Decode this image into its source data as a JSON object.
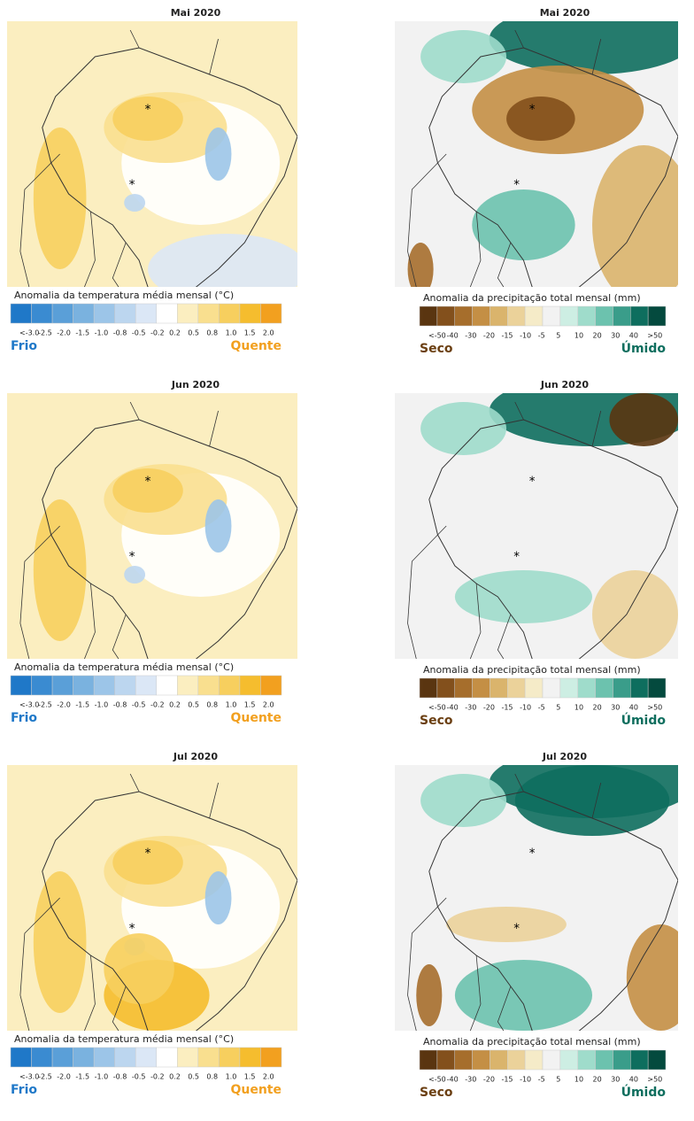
{
  "rows": [
    {
      "temperature_title": "Mai 2020",
      "precipitation_title": "Mai 2020"
    },
    {
      "temperature_title": "Jun 2020",
      "precipitation_title": "Jun 2020"
    },
    {
      "temperature_title": "Jul 2020",
      "precipitation_title": "Jul 2020"
    }
  ],
  "temperature_legend": {
    "title": "Anomalia da temperatura média mensal (°C)",
    "ticks": [
      "<-3.0",
      "-2.5",
      "-2.0",
      "-1.5",
      "-1.0",
      "-0.8",
      "-0.5",
      "-0.2",
      "0.2",
      "0.5",
      "0.8",
      "1.0",
      "1.5",
      "2.0"
    ],
    "low_label": "Frio",
    "high_label": "Quente",
    "colors": [
      "#1f78c8",
      "#3a8bd1",
      "#5a9fd8",
      "#7ab2df",
      "#9cc5e8",
      "#bcd6ef",
      "#dbe7f6",
      "#ffffff",
      "#fbeec0",
      "#f9df8f",
      "#f7cf5e",
      "#f5bd2e",
      "#f2a01f"
    ]
  },
  "precipitation_legend": {
    "title": "Anomalia da precipitação total mensal (mm)",
    "ticks": [
      "<-50",
      "-40",
      "-30",
      "-20",
      "-15",
      "-10",
      "-5",
      "5",
      "10",
      "20",
      "30",
      "40",
      ">50"
    ],
    "low_label": "Seco",
    "high_label": "Úmido",
    "colors": [
      "#5a3510",
      "#83501c",
      "#a66e2c",
      "#c48f45",
      "#dab46c",
      "#ebd29a",
      "#f5ebc8",
      "#f2f2f2",
      "#cdeee3",
      "#9fdccb",
      "#6cc2ae",
      "#3a9d8a",
      "#0e6e5e",
      "#044a3e"
    ]
  }
}
